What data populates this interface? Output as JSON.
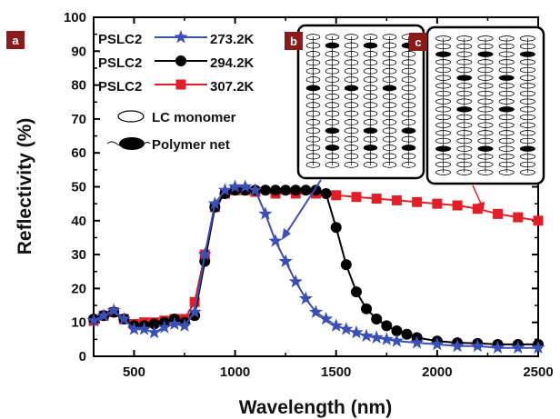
{
  "chart_data": {
    "type": "line",
    "xlabel": "Wavelength (nm)",
    "ylabel": "Reflectivity (%)",
    "xlim": [
      300,
      2500
    ],
    "ylim": [
      0,
      100
    ],
    "xticks": [
      500,
      1000,
      1500,
      2000,
      2500
    ],
    "yticks": [
      0,
      10,
      20,
      30,
      40,
      50,
      60,
      70,
      80,
      90,
      100
    ],
    "grid": false,
    "legend_position": "top-left",
    "series": [
      {
        "name": "PSLC2 273.2K",
        "marker": "star",
        "color": "#3b4fb8",
        "points": [
          [
            300,
            10.5
          ],
          [
            350,
            12
          ],
          [
            400,
            13.5
          ],
          [
            450,
            11
          ],
          [
            500,
            8
          ],
          [
            550,
            8
          ],
          [
            600,
            7
          ],
          [
            650,
            8.5
          ],
          [
            700,
            9.5
          ],
          [
            750,
            9
          ],
          [
            800,
            13
          ],
          [
            850,
            30
          ],
          [
            900,
            45
          ],
          [
            950,
            49
          ],
          [
            1000,
            50
          ],
          [
            1050,
            50
          ],
          [
            1100,
            49
          ],
          [
            1150,
            42
          ],
          [
            1200,
            34
          ],
          [
            1250,
            28
          ],
          [
            1300,
            22
          ],
          [
            1350,
            17
          ],
          [
            1400,
            13
          ],
          [
            1450,
            11
          ],
          [
            1500,
            9
          ],
          [
            1550,
            8
          ],
          [
            1600,
            7
          ],
          [
            1650,
            6
          ],
          [
            1700,
            5.5
          ],
          [
            1750,
            5
          ],
          [
            1800,
            4.5
          ],
          [
            1900,
            4
          ],
          [
            2000,
            3.5
          ],
          [
            2100,
            3
          ],
          [
            2200,
            3
          ],
          [
            2300,
            2.5
          ],
          [
            2400,
            2.5
          ],
          [
            2500,
            2.5
          ]
        ]
      },
      {
        "name": "PSLC2 294.2K",
        "marker": "circle",
        "color": "#000000",
        "points": [
          [
            300,
            11
          ],
          [
            350,
            12
          ],
          [
            400,
            13
          ],
          [
            450,
            11
          ],
          [
            500,
            9
          ],
          [
            550,
            9
          ],
          [
            600,
            9.5
          ],
          [
            650,
            10
          ],
          [
            700,
            11
          ],
          [
            750,
            10
          ],
          [
            800,
            12
          ],
          [
            850,
            28
          ],
          [
            900,
            44
          ],
          [
            950,
            48
          ],
          [
            1000,
            49
          ],
          [
            1050,
            49
          ],
          [
            1100,
            49
          ],
          [
            1150,
            49
          ],
          [
            1200,
            49
          ],
          [
            1250,
            49
          ],
          [
            1300,
            49
          ],
          [
            1350,
            49
          ],
          [
            1400,
            49
          ],
          [
            1450,
            48
          ],
          [
            1500,
            38
          ],
          [
            1550,
            27
          ],
          [
            1600,
            19
          ],
          [
            1650,
            14
          ],
          [
            1700,
            11
          ],
          [
            1750,
            9
          ],
          [
            1800,
            7.5
          ],
          [
            1850,
            6.5
          ],
          [
            1900,
            5.5
          ],
          [
            2000,
            4.5
          ],
          [
            2100,
            4
          ],
          [
            2200,
            3.8
          ],
          [
            2300,
            3.5
          ],
          [
            2400,
            3.5
          ],
          [
            2500,
            3.5
          ]
        ]
      },
      {
        "name": "PSLC2 307.2K",
        "marker": "square",
        "color": "#e21e26",
        "points": [
          [
            300,
            10.5
          ],
          [
            350,
            12
          ],
          [
            400,
            13
          ],
          [
            450,
            11
          ],
          [
            500,
            9.5
          ],
          [
            550,
            10
          ],
          [
            600,
            10
          ],
          [
            650,
            10.5
          ],
          [
            700,
            11
          ],
          [
            750,
            11
          ],
          [
            800,
            16
          ],
          [
            850,
            30
          ],
          [
            900,
            44
          ],
          [
            950,
            48
          ],
          [
            1000,
            49
          ],
          [
            1050,
            49
          ],
          [
            1100,
            48.5
          ],
          [
            1200,
            48
          ],
          [
            1300,
            48
          ],
          [
            1400,
            48
          ],
          [
            1500,
            47.5
          ],
          [
            1600,
            47
          ],
          [
            1700,
            46.5
          ],
          [
            1800,
            46
          ],
          [
            1900,
            45.5
          ],
          [
            2000,
            45
          ],
          [
            2100,
            44.5
          ],
          [
            2200,
            43.5
          ],
          [
            2300,
            42
          ],
          [
            2400,
            41
          ],
          [
            2500,
            40
          ]
        ]
      }
    ],
    "legend": {
      "entries": [
        {
          "prefix": "PSLC2",
          "temp": "273.2K"
        },
        {
          "prefix": "PSLC2",
          "temp": "294.2K"
        },
        {
          "prefix": "PSLC2",
          "temp": "307.2K"
        }
      ],
      "extra": [
        {
          "label": "LC monomer"
        },
        {
          "label": "Polymer net"
        }
      ]
    },
    "panel_labels": [
      "a",
      "b",
      "c"
    ]
  },
  "colors": {
    "badge": "#8b1a1a",
    "inset_arrow_b": "#3b4fb8",
    "inset_arrow_c": "#e21e26"
  }
}
